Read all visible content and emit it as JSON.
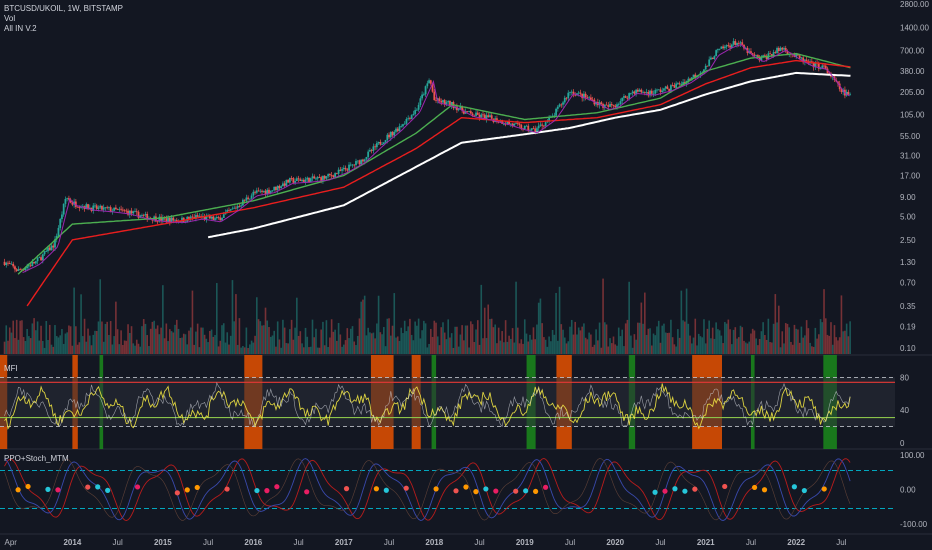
{
  "header": {
    "symbol_line": "BTCUSD/UKOIL, 1W, BITSTAMP",
    "volume_label": "Vol",
    "indicator_label": "All IN V.2"
  },
  "panes": {
    "mfi_label": "MFI",
    "ppo_label": "PPO+Stoch_MTM"
  },
  "colors": {
    "background": "#131722",
    "up_candle": "#26a69a",
    "down_candle": "#ef5350",
    "ema_red": "#e91e1e",
    "ema_green": "#4caf50",
    "ema_purple": "#9c27b0",
    "ema_white": "#ffffff",
    "mfi_line": "#f0e442",
    "mfi_band": "#2a2e39",
    "zone_green": "#1b8a1b",
    "zone_orange": "#e65100"
  },
  "chart_data": [
    {
      "type": "line",
      "title": "BTCUSD/UKOIL, 1W, BITSTAMP",
      "y_scale": "log",
      "y_ticks": [
        "2800.00",
        "1400.00",
        "700.00",
        "380.00",
        "205.00",
        "105.00",
        "55.00",
        "31.00",
        "17.00",
        "9.00",
        "5.00",
        "2.50",
        "1.30",
        "0.70",
        "0.35",
        "0.19",
        "0.10"
      ],
      "y_tick_values": [
        2800,
        1400,
        700,
        380,
        205,
        105,
        55,
        31,
        17,
        9,
        5,
        2.5,
        1.3,
        0.7,
        0.35,
        0.19,
        0.1
      ],
      "x_ticks": [
        {
          "label": "Apr",
          "t": 2013.25,
          "major": false
        },
        {
          "label": "2014",
          "t": 2014.0,
          "major": true
        },
        {
          "label": "Jul",
          "t": 2014.5,
          "major": false
        },
        {
          "label": "2015",
          "t": 2015.0,
          "major": true
        },
        {
          "label": "Jul",
          "t": 2015.5,
          "major": false
        },
        {
          "label": "2016",
          "t": 2016.0,
          "major": true
        },
        {
          "label": "Jul",
          "t": 2016.5,
          "major": false
        },
        {
          "label": "2017",
          "t": 2017.0,
          "major": true
        },
        {
          "label": "Jul",
          "t": 2017.5,
          "major": false
        },
        {
          "label": "2018",
          "t": 2018.0,
          "major": true
        },
        {
          "label": "Jul",
          "t": 2018.5,
          "major": false
        },
        {
          "label": "2019",
          "t": 2019.0,
          "major": true
        },
        {
          "label": "Jul",
          "t": 2019.5,
          "major": false
        },
        {
          "label": "2020",
          "t": 2020.0,
          "major": true
        },
        {
          "label": "Jul",
          "t": 2020.5,
          "major": false
        },
        {
          "label": "2021",
          "t": 2021.0,
          "major": true
        },
        {
          "label": "Jul",
          "t": 2021.5,
          "major": false
        },
        {
          "label": "2022",
          "t": 2022.0,
          "major": true
        },
        {
          "label": "Jul",
          "t": 2022.5,
          "major": false
        }
      ],
      "x_range": [
        2013.2,
        2022.65
      ],
      "price_path": {
        "t": [
          2013.25,
          2013.4,
          2013.6,
          2013.8,
          2013.93,
          2014.0,
          2014.2,
          2014.4,
          2014.6,
          2014.8,
          2015.0,
          2015.2,
          2015.4,
          2015.6,
          2015.8,
          2016.0,
          2016.2,
          2016.4,
          2016.6,
          2016.8,
          2017.0,
          2017.2,
          2017.4,
          2017.6,
          2017.8,
          2017.95,
          2018.0,
          2018.2,
          2018.4,
          2018.6,
          2018.8,
          2018.95,
          2019.1,
          2019.3,
          2019.5,
          2019.7,
          2019.9,
          2020.0,
          2020.2,
          2020.4,
          2020.6,
          2020.8,
          2021.0,
          2021.1,
          2021.25,
          2021.35,
          2021.5,
          2021.6,
          2021.75,
          2021.85,
          2022.0,
          2022.15,
          2022.3,
          2022.4,
          2022.5,
          2022.6
        ],
        "close": [
          1.3,
          1.0,
          1.3,
          2.2,
          9.0,
          7.5,
          6.5,
          6.2,
          5.8,
          5.0,
          4.6,
          4.5,
          5.0,
          4.6,
          6.5,
          10.0,
          11.0,
          14.5,
          15.0,
          16.0,
          20.0,
          27.0,
          45.0,
          70.0,
          120.0,
          300.0,
          160.0,
          140.0,
          105.0,
          95.0,
          82.0,
          72.0,
          65.0,
          95.0,
          210.0,
          170.0,
          130.0,
          140.0,
          210.0,
          200.0,
          230.0,
          290.0,
          420.0,
          650.0,
          820.0,
          900.0,
          620.0,
          540.0,
          660.0,
          760.0,
          580.0,
          470.0,
          430.0,
          310.0,
          210.0,
          180.0
        ]
      },
      "moving_averages": [
        {
          "color": "#4caf50",
          "t": [
            2013.4,
            2014.0,
            2015.0,
            2016.0,
            2017.0,
            2017.8,
            2018.2,
            2019.0,
            2019.8,
            2020.5,
            2021.0,
            2021.5,
            2022.0,
            2022.6
          ],
          "values": [
            0.9,
            4.0,
            4.8,
            8.0,
            17.0,
            60.0,
            140.0,
            90.0,
            110.0,
            170.0,
            380.0,
            560.0,
            640.0,
            420.0
          ]
        },
        {
          "color": "#e91e1e",
          "t": [
            2013.5,
            2014.0,
            2015.0,
            2016.0,
            2017.0,
            2017.8,
            2018.3,
            2019.0,
            2019.8,
            2020.5,
            2021.0,
            2021.5,
            2022.0,
            2022.6
          ],
          "values": [
            0.35,
            2.5,
            4.0,
            6.5,
            12.0,
            38.0,
            95.0,
            82.0,
            95.0,
            140.0,
            260.0,
            420.0,
            520.0,
            430.0
          ]
        },
        {
          "color": "#ffffff",
          "t": [
            2015.5,
            2016.0,
            2017.0,
            2017.8,
            2018.3,
            2019.0,
            2019.5,
            2020.0,
            2020.5,
            2021.0,
            2021.5,
            2022.0,
            2022.6
          ],
          "values": [
            2.7,
            3.5,
            7.0,
            22.0,
            45.0,
            58.0,
            70.0,
            95.0,
            120.0,
            190.0,
            280.0,
            360.0,
            330.0
          ]
        }
      ]
    },
    {
      "type": "bar",
      "title": "Vol",
      "y_ticks": []
    },
    {
      "type": "line",
      "title": "MFI",
      "y_ticks": [
        "80",
        "40",
        "0"
      ],
      "y_tick_values": [
        80,
        40,
        0
      ],
      "ylim": [
        0,
        100
      ],
      "bands": {
        "upper": 80,
        "lower": 20
      },
      "zones": [
        {
          "start": 2013.2,
          "end": 2013.28,
          "color": "#e65100"
        },
        {
          "start": 2014.0,
          "end": 2014.06,
          "color": "#e65100"
        },
        {
          "start": 2014.3,
          "end": 2014.34,
          "color": "#1b8a1b"
        },
        {
          "start": 2015.9,
          "end": 2016.1,
          "color": "#e65100"
        },
        {
          "start": 2017.3,
          "end": 2017.55,
          "color": "#e65100"
        },
        {
          "start": 2017.75,
          "end": 2017.85,
          "color": "#e65100"
        },
        {
          "start": 2017.97,
          "end": 2018.02,
          "color": "#1b8a1b"
        },
        {
          "start": 2019.02,
          "end": 2019.12,
          "color": "#1b8a1b"
        },
        {
          "start": 2019.35,
          "end": 2019.52,
          "color": "#e65100"
        },
        {
          "start": 2020.15,
          "end": 2020.22,
          "color": "#1b8a1b"
        },
        {
          "start": 2020.85,
          "end": 2021.18,
          "color": "#e65100"
        },
        {
          "start": 2021.5,
          "end": 2021.54,
          "color": "#1b8a1b"
        },
        {
          "start": 2022.3,
          "end": 2022.45,
          "color": "#1b8a1b"
        }
      ]
    },
    {
      "type": "line",
      "title": "PPO+Stoch_MTM",
      "y_ticks": [
        "100.00",
        "0.00",
        "-100.00"
      ],
      "y_tick_values": [
        100,
        0,
        -100
      ],
      "ylim": [
        -100,
        100
      ]
    }
  ]
}
